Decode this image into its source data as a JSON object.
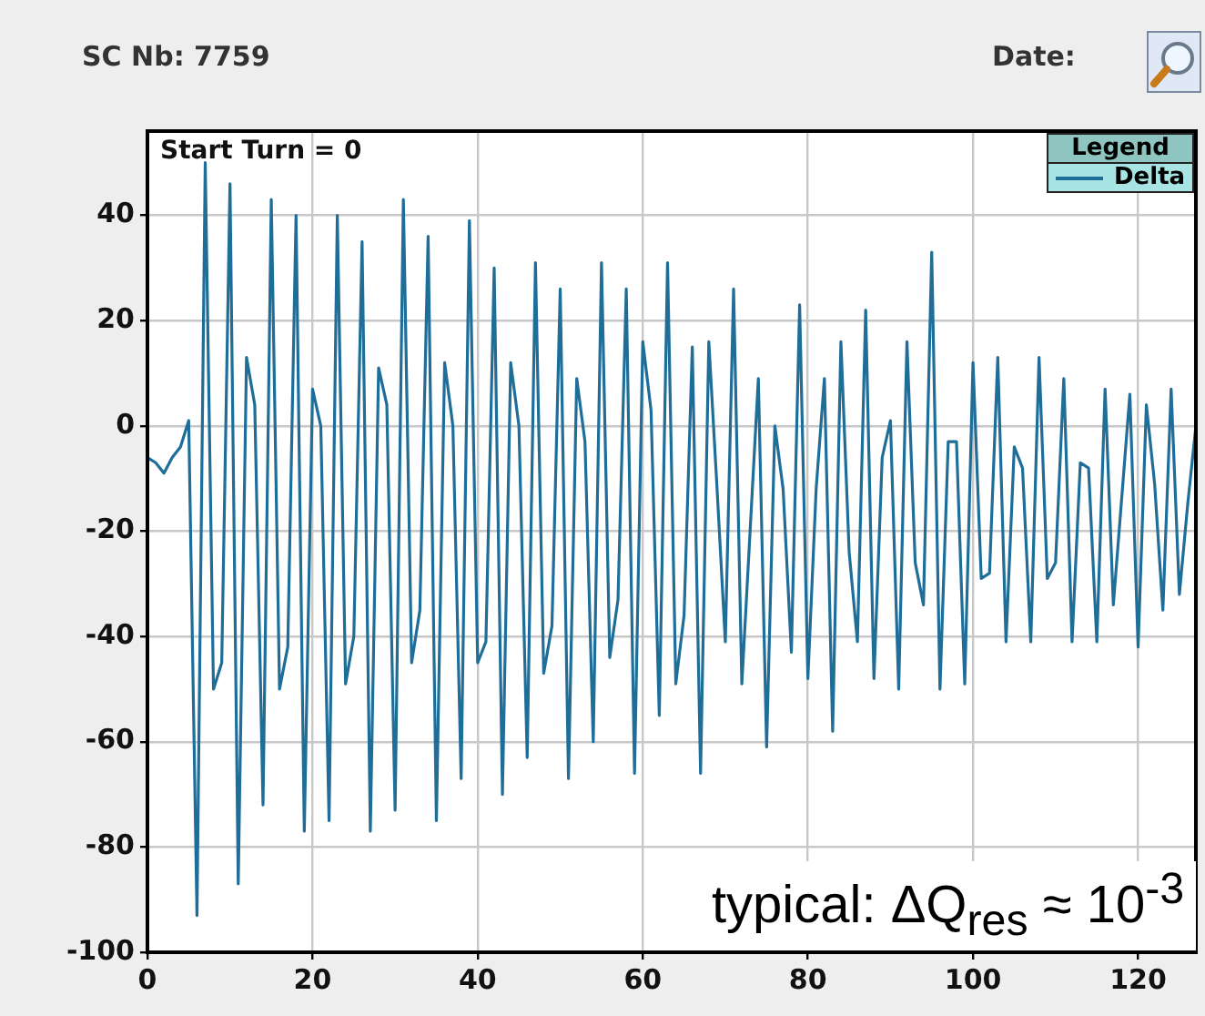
{
  "chart_data": {
    "type": "line",
    "annotations": [
      "SC Nb: 7759",
      "Date:",
      "Start Turn = 0",
      "typical: ΔQ$_{res}$ ≈ 10$^{-3}$"
    ],
    "x": [
      0,
      1,
      2,
      3,
      4,
      5,
      6,
      7,
      8,
      9,
      10,
      11,
      12,
      13,
      14,
      15,
      16,
      17,
      18,
      19,
      20,
      21,
      22,
      23,
      24,
      25,
      26,
      27,
      28,
      29,
      30,
      31,
      32,
      33,
      34,
      35,
      36,
      37,
      38,
      39,
      40,
      41,
      42,
      43,
      44,
      45,
      46,
      47,
      48,
      49,
      50,
      51,
      52,
      53,
      54,
      55,
      56,
      57,
      58,
      59,
      60,
      61,
      62,
      63,
      64,
      65,
      66,
      67,
      68,
      69,
      70,
      71,
      72,
      73,
      74,
      75,
      76,
      77,
      78,
      79,
      80,
      81,
      82,
      83,
      84,
      85,
      86,
      87,
      88,
      89,
      90,
      91,
      92,
      93,
      94,
      95,
      96,
      97,
      98,
      99,
      100,
      101,
      102,
      103,
      104,
      105,
      106,
      107,
      108,
      109,
      110,
      111,
      112,
      113,
      114,
      115,
      116,
      117,
      118,
      119,
      120,
      121,
      122,
      123,
      124,
      125,
      126,
      127
    ],
    "series": [
      {
        "name": "Delta",
        "color": "#1f6e99",
        "values": [
          -6,
          -7,
          -9,
          -6,
          -4,
          1,
          -93,
          50,
          -50,
          -45,
          46,
          -87,
          13,
          4,
          -72,
          43,
          -50,
          -42,
          40,
          -77,
          7,
          0,
          -75,
          40,
          -49,
          -40,
          35,
          -77,
          11,
          4,
          -73,
          43,
          -45,
          -35,
          36,
          -75,
          12,
          0,
          -67,
          39,
          -45,
          -41,
          30,
          -70,
          12,
          0,
          -63,
          31,
          -47,
          -38,
          26,
          -67,
          9,
          -3,
          -60,
          31,
          -44,
          -33,
          26,
          -66,
          16,
          3,
          -55,
          31,
          -49,
          -36,
          15,
          -66,
          16,
          -12,
          -41,
          26,
          -49,
          -20,
          9,
          -61,
          0,
          -12,
          -43,
          23,
          -48,
          -12,
          9,
          -58,
          16,
          -24,
          -41,
          22,
          -48,
          -6,
          1,
          -50,
          16,
          -26,
          -34,
          33,
          -50,
          -3,
          -3,
          -49,
          12,
          -29,
          -28,
          13,
          -41,
          -4,
          -8,
          -41,
          13,
          -29,
          -26,
          9,
          -41,
          -7,
          -8,
          -41,
          7,
          -34,
          -14,
          6,
          -42,
          4,
          -11,
          -35,
          7,
          -32,
          -15,
          0
        ]
      }
    ],
    "xlim": [
      0,
      127
    ],
    "xticks": [
      0,
      20,
      40,
      60,
      80,
      100,
      120
    ],
    "ylim": [
      -100,
      56
    ],
    "yticks": [
      -100,
      -80,
      -60,
      -40,
      -20,
      0,
      20,
      40
    ],
    "grid": true,
    "legend": "top right",
    "legend_title": "Legend",
    "marker": "none",
    "line_style": "solid"
  }
}
